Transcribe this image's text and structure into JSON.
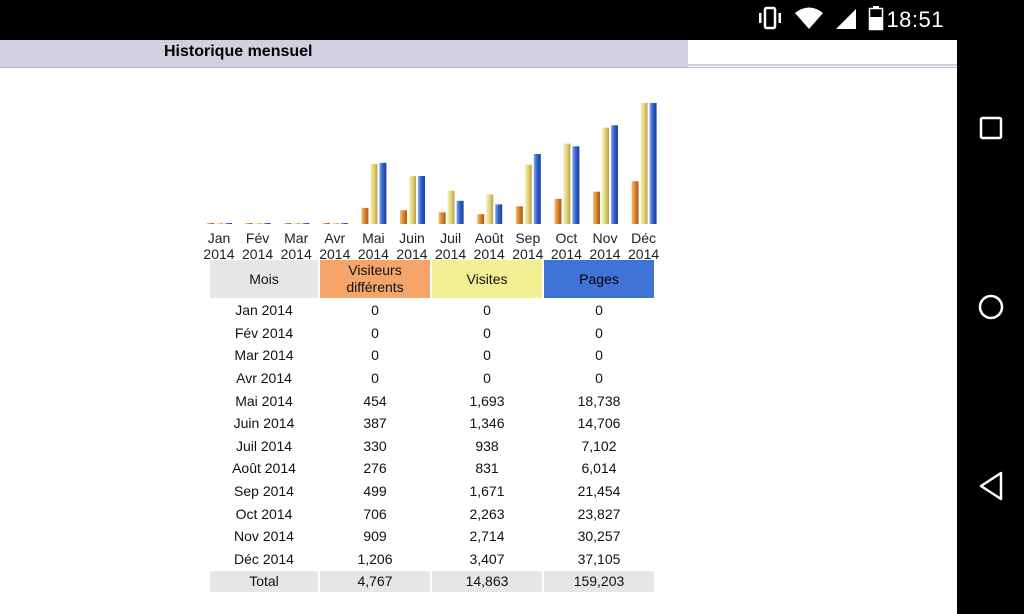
{
  "status": {
    "time": "18:51"
  },
  "header": {
    "title": "Historique mensuel"
  },
  "months": [
    {
      "label": "Jan",
      "year": "2014"
    },
    {
      "label": "Fév",
      "year": "2014"
    },
    {
      "label": "Mar",
      "year": "2014"
    },
    {
      "label": "Avr",
      "year": "2014"
    },
    {
      "label": "Mai",
      "year": "2014"
    },
    {
      "label": "Juin",
      "year": "2014"
    },
    {
      "label": "Juil",
      "year": "2014"
    },
    {
      "label": "Août",
      "year": "2014"
    },
    {
      "label": "Sep",
      "year": "2014"
    },
    {
      "label": "Oct",
      "year": "2014"
    },
    {
      "label": "Nov",
      "year": "2014"
    },
    {
      "label": "Déc",
      "year": "2014"
    }
  ],
  "table": {
    "headers": {
      "month": "Mois",
      "visitors": "Visiteurs différents",
      "visits": "Visites",
      "pages": "Pages"
    },
    "rows": [
      {
        "month": "Jan 2014",
        "visitors": "0",
        "visits": "0",
        "pages": "0"
      },
      {
        "month": "Fév 2014",
        "visitors": "0",
        "visits": "0",
        "pages": "0"
      },
      {
        "month": "Mar 2014",
        "visitors": "0",
        "visits": "0",
        "pages": "0"
      },
      {
        "month": "Avr 2014",
        "visitors": "0",
        "visits": "0",
        "pages": "0"
      },
      {
        "month": "Mai 2014",
        "visitors": "454",
        "visits": "1,693",
        "pages": "18,738"
      },
      {
        "month": "Juin 2014",
        "visitors": "387",
        "visits": "1,346",
        "pages": "14,706"
      },
      {
        "month": "Juil 2014",
        "visitors": "330",
        "visits": "938",
        "pages": "7,102"
      },
      {
        "month": "Août 2014",
        "visitors": "276",
        "visits": "831",
        "pages": "6,014"
      },
      {
        "month": "Sep 2014",
        "visitors": "499",
        "visits": "1,671",
        "pages": "21,454"
      },
      {
        "month": "Oct 2014",
        "visitors": "706",
        "visits": "2,263",
        "pages": "23,827"
      },
      {
        "month": "Nov 2014",
        "visitors": "909",
        "visits": "2,714",
        "pages": "30,257"
      },
      {
        "month": "Déc 2014",
        "visitors": "1,206",
        "visits": "3,407",
        "pages": "37,105"
      }
    ],
    "total": {
      "label": "Total",
      "visitors": "4,767",
      "visits": "14,863",
      "pages": "159,203"
    }
  },
  "chart_data": {
    "type": "bar",
    "categories": [
      "Jan 2014",
      "Fév 2014",
      "Mar 2014",
      "Avr 2014",
      "Mai 2014",
      "Juin 2014",
      "Juil 2014",
      "Août 2014",
      "Sep 2014",
      "Oct 2014",
      "Nov 2014",
      "Déc 2014"
    ],
    "series": [
      {
        "name": "Visiteurs différents",
        "color": "#d98a2e",
        "values": [
          0,
          0,
          0,
          0,
          454,
          387,
          330,
          276,
          499,
          706,
          909,
          1206
        ]
      },
      {
        "name": "Visites",
        "color": "#e2d27a",
        "values": [
          0,
          0,
          0,
          0,
          1693,
          1346,
          938,
          831,
          1671,
          2263,
          2714,
          3407
        ]
      },
      {
        "name": "Pages",
        "color": "#2f5fc8",
        "values": [
          0,
          0,
          0,
          0,
          18738,
          14706,
          7102,
          6014,
          21454,
          23827,
          30257,
          37105
        ]
      }
    ],
    "scales": {
      "visitors_max": 3407,
      "visits_max": 3407,
      "pages_max": 37105
    },
    "title": "",
    "xlabel": "",
    "ylabel": ""
  },
  "colors": {
    "header_bg": "#d0d0e0",
    "visitors": "#f5a56a",
    "visits": "#f2ee92",
    "pages": "#3f74d6",
    "neutral": "#e6e6e6"
  },
  "icons": {
    "vibrate": "vibrate-icon",
    "wifi": "wifi-icon",
    "signal": "signal-icon",
    "battery": "battery-icon",
    "recents": "recents-square-icon",
    "home": "home-circle-icon",
    "back": "back-triangle-icon"
  }
}
